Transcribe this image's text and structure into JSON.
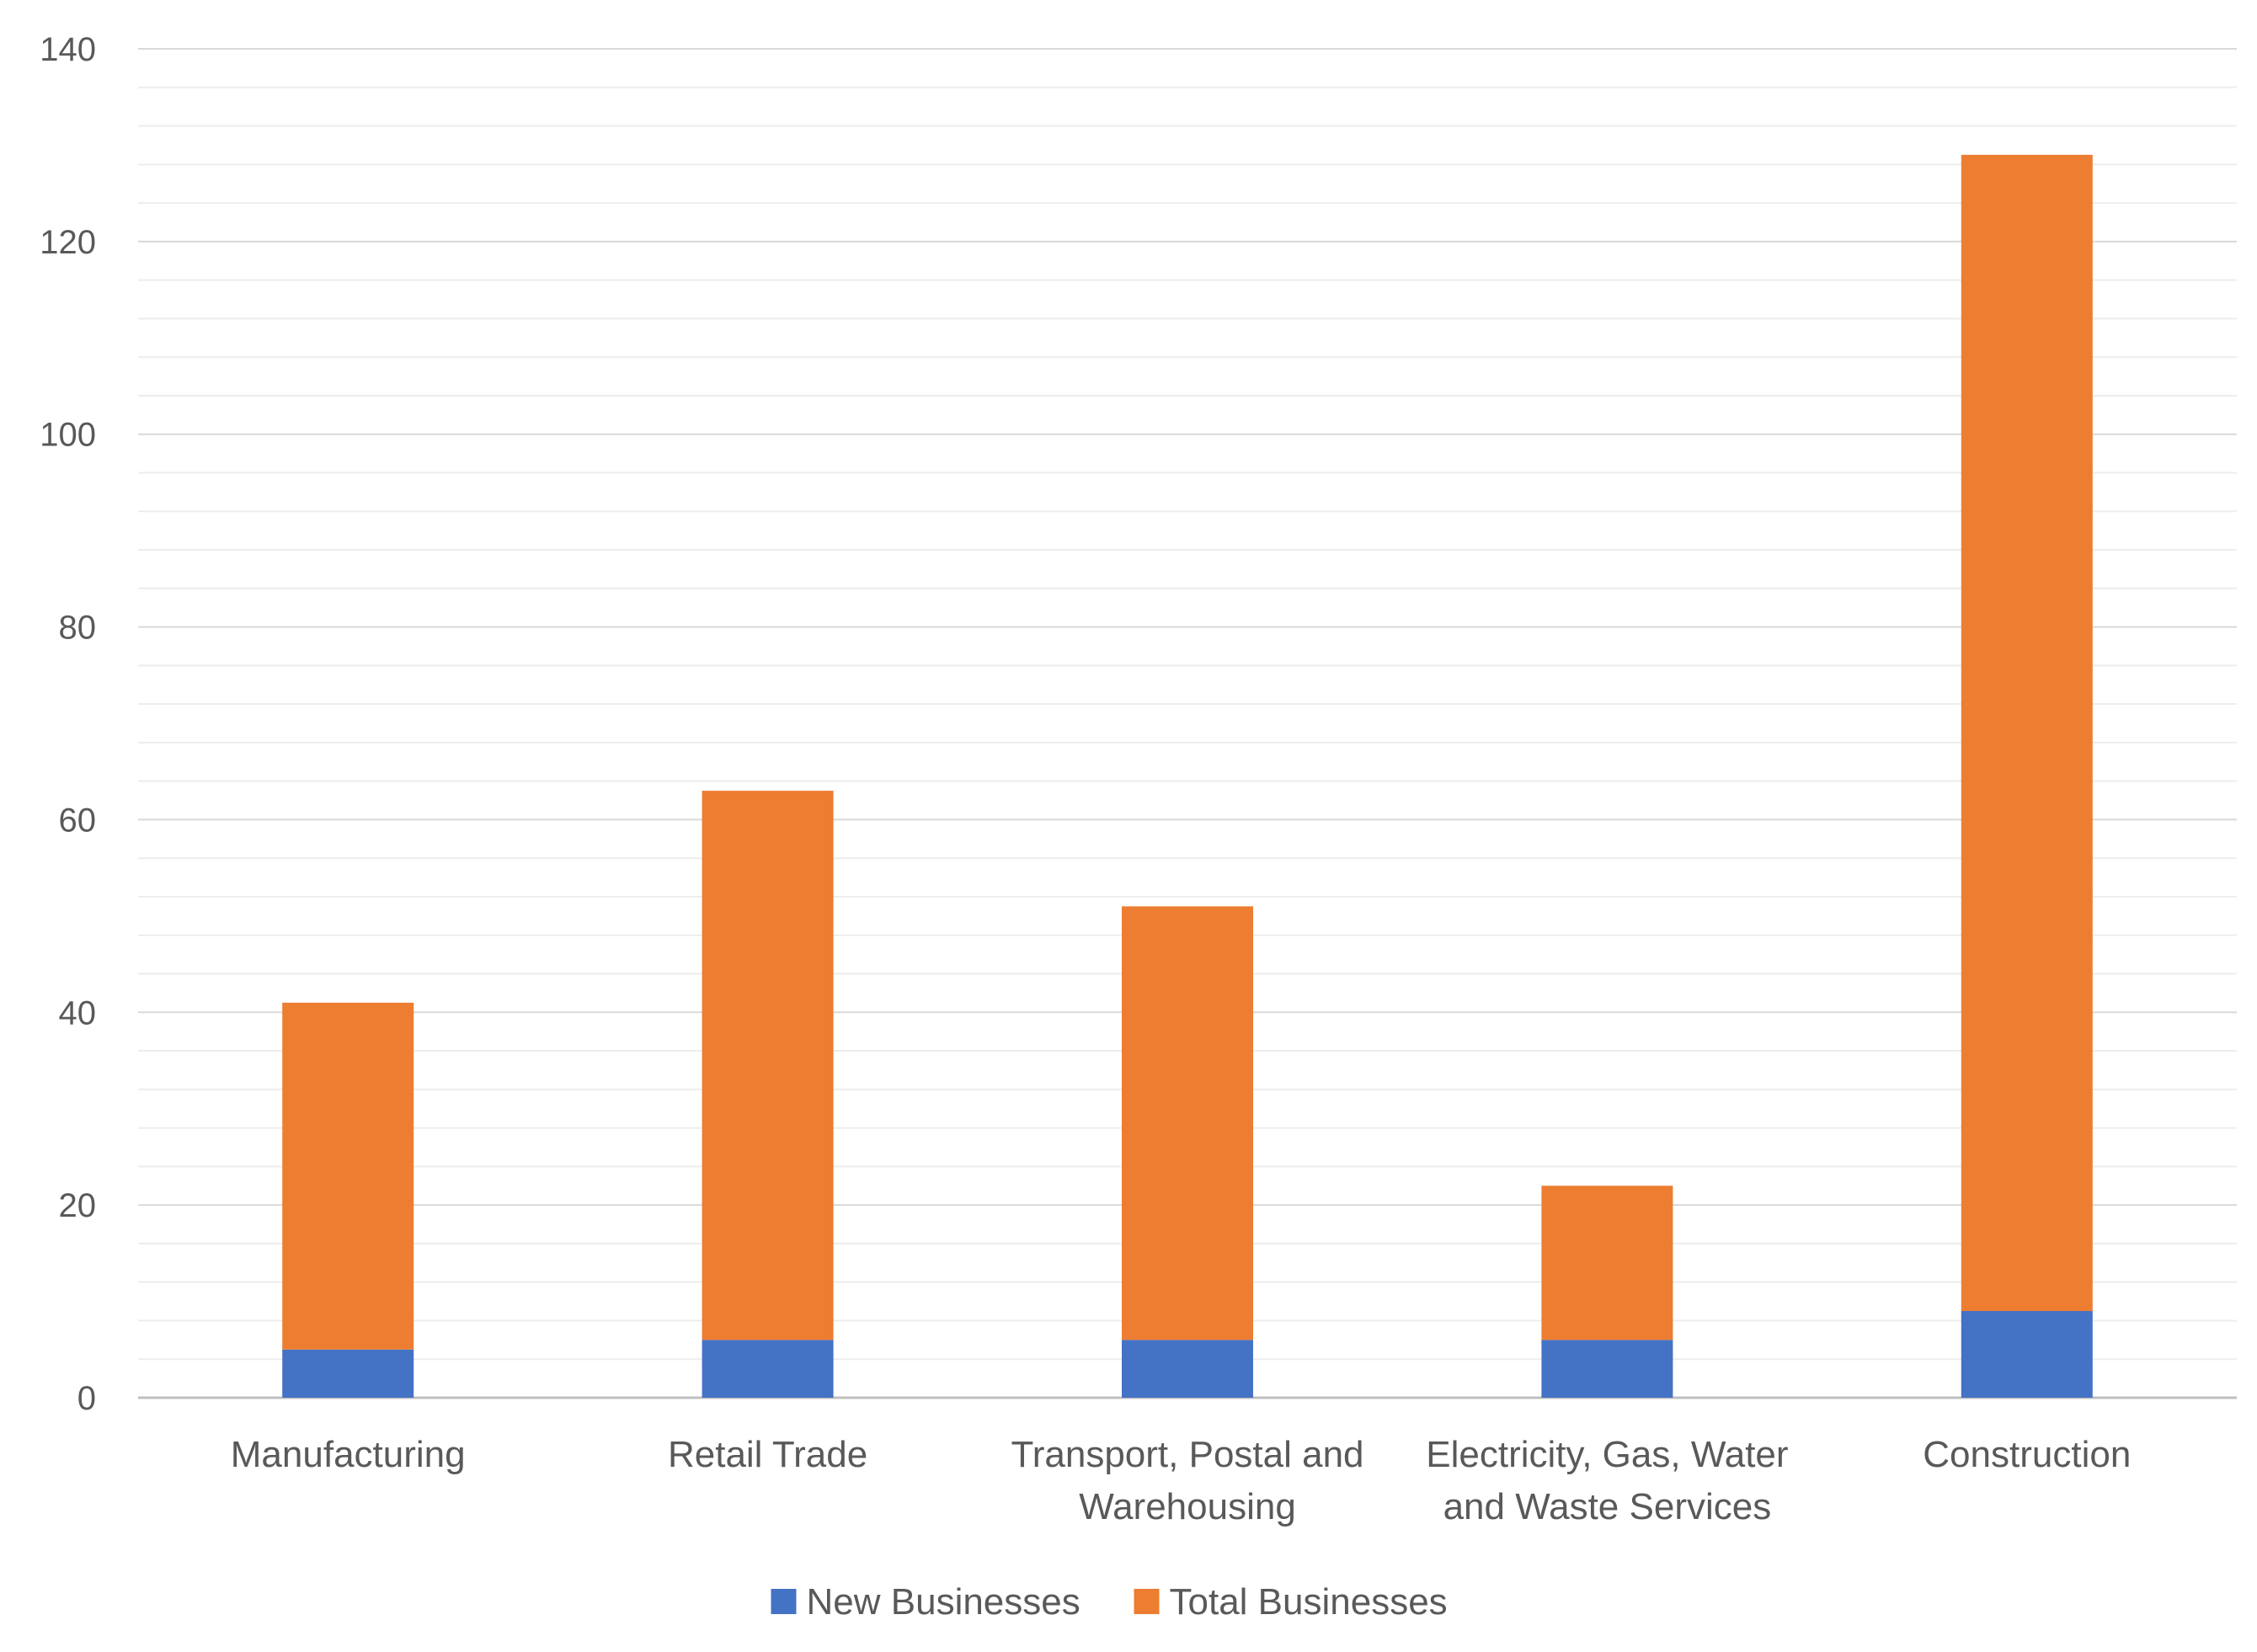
{
  "chart_data": {
    "type": "bar",
    "stacked": true,
    "categories": [
      [
        "Manufacturing"
      ],
      [
        "Retail Trade"
      ],
      [
        "Transport, Postal and",
        "Warehousing"
      ],
      [
        "Electricity, Gas, Water",
        "and Waste Services"
      ],
      [
        "Construction"
      ]
    ],
    "series": [
      {
        "name": "New Businesses",
        "color": "#4472C4",
        "values": [
          5,
          6,
          6,
          6,
          9
        ]
      },
      {
        "name": "Total Businesses",
        "color": "#ED7D31",
        "values": [
          36,
          57,
          45,
          16,
          120
        ]
      }
    ],
    "ylim": [
      0,
      140
    ],
    "yticks": [
      0,
      20,
      40,
      60,
      80,
      100,
      120,
      140
    ],
    "minor_gridlines_step": 4,
    "grid": true,
    "legend": "bottom"
  }
}
